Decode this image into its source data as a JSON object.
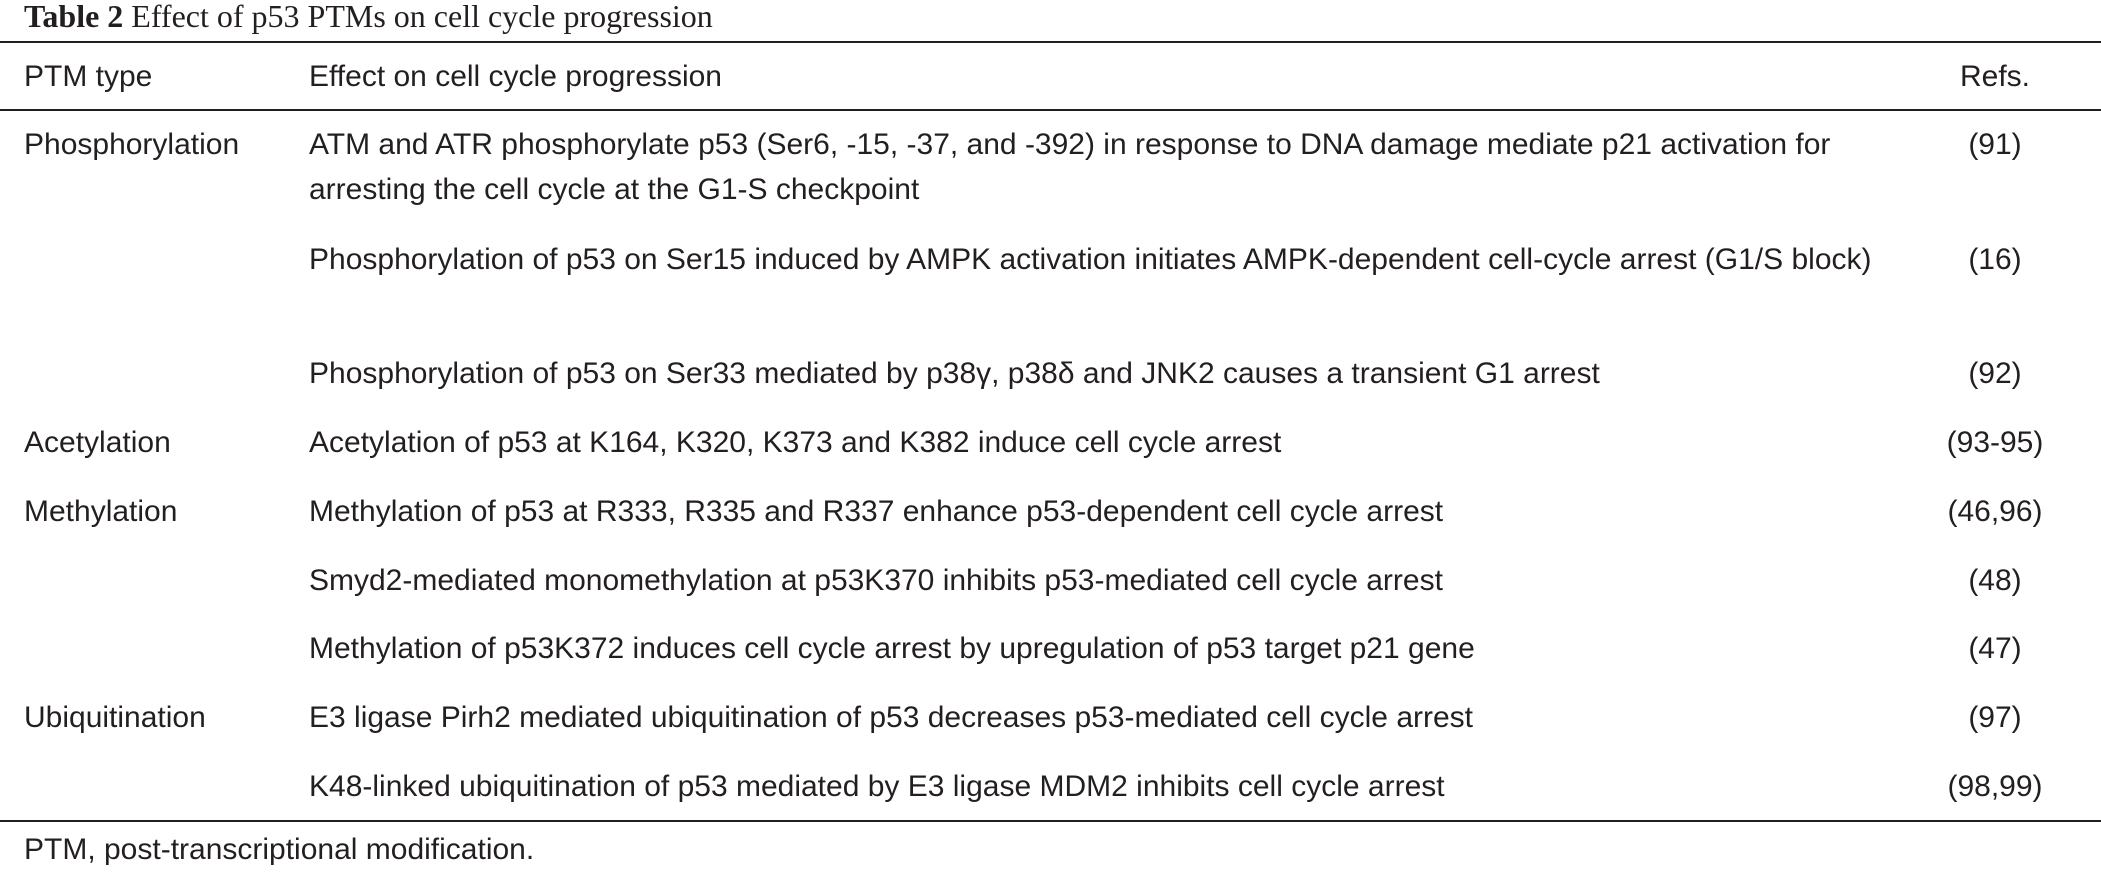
{
  "caption": {
    "label": "Table 2",
    "title": "Effect of p53 PTMs on cell cycle progression"
  },
  "table": {
    "headers": {
      "type": "PTM type",
      "effect": "Effect on cell cycle progression",
      "refs": "Refs."
    },
    "rows": [
      {
        "type": "Phosphorylation",
        "effect": "ATM and ATR phosphorylate p53 (Ser6, -15, -37, and -392) in response to DNA damage mediate p21 activation for arresting the cell cycle at the G1-S checkpoint",
        "refs": "(91)"
      },
      {
        "type": "",
        "effect": "Phosphorylation of p53 on Ser15 induced by AMPK activation initiates AMPK-dependent cell-cycle arrest (G1/S block)",
        "refs": "(16)"
      },
      {
        "type": "",
        "effect": "Phosphorylation of p53 on Ser33 mediated by p38γ, p38δ and JNK2 causes a transient G1 arrest",
        "refs": "(92)"
      },
      {
        "type": "Acetylation",
        "effect": "Acetylation of p53 at K164, K320, K373 and K382 induce cell cycle arrest",
        "refs": "(93-95)"
      },
      {
        "type": "Methylation",
        "effect": "Methylation of p53 at R333, R335 and R337 enhance p53-dependent cell cycle arrest",
        "refs": "(46,96)"
      },
      {
        "type": "",
        "effect": "Smyd2-mediated monomethylation at p53K370 inhibits p53-mediated cell cycle arrest",
        "refs": "(48)"
      },
      {
        "type": "",
        "effect": "Methylation of p53K372 induces cell cycle arrest by upregulation of p53 target p21 gene",
        "refs": "(47)"
      },
      {
        "type": "Ubiquitination",
        "effect": "E3 ligase Pirh2 mediated ubiquitination of p53 decreases p53-mediated cell cycle arrest",
        "refs": "(97)"
      },
      {
        "type": "",
        "effect": "K48-linked ubiquitination of p53 mediated by E3 ligase MDM2 inhibits cell cycle arrest",
        "refs": "(98,99)"
      }
    ]
  },
  "footnote": "PTM, post-transcriptional modification."
}
